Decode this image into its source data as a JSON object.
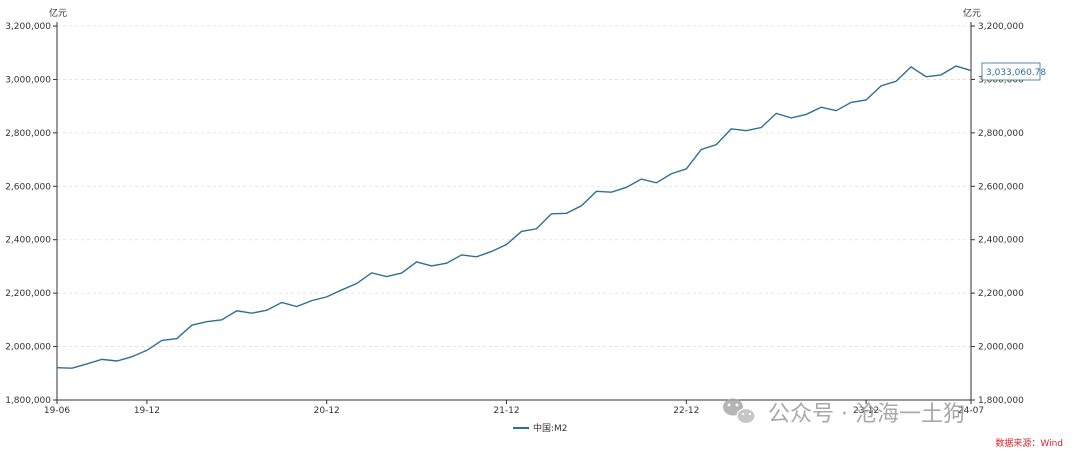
{
  "chart_data": {
    "type": "line",
    "unit_left": "亿元",
    "unit_right": "亿元",
    "ylim": [
      1800000,
      3200000
    ],
    "y_ticks": [
      1800000,
      2000000,
      2200000,
      2400000,
      2600000,
      2800000,
      3000000,
      3200000
    ],
    "y_tick_labels": [
      "1,800,000",
      "2,000,000",
      "2,200,000",
      "2,400,000",
      "2,600,000",
      "2,800,000",
      "3,000,000",
      "3,200,000"
    ],
    "x_tick_labels": [
      {
        "label": "19-06",
        "month": "2019-06"
      },
      {
        "label": "19-12",
        "month": "2019-12"
      },
      {
        "label": "20-12",
        "month": "2020-12"
      },
      {
        "label": "21-12",
        "month": "2021-12"
      },
      {
        "label": "22-12",
        "month": "2022-12"
      },
      {
        "label": "23-12",
        "month": "2023-12"
      },
      {
        "label": "24-07",
        "month": "2024-07"
      }
    ],
    "grid": "horizontal-dashed",
    "legend_position": "bottom-center",
    "series": [
      {
        "name": "中国:M2",
        "color": "#2e6f95",
        "x": [
          "2019-06",
          "2019-07",
          "2019-08",
          "2019-09",
          "2019-10",
          "2019-11",
          "2019-12",
          "2020-01",
          "2020-02",
          "2020-03",
          "2020-04",
          "2020-05",
          "2020-06",
          "2020-07",
          "2020-08",
          "2020-09",
          "2020-10",
          "2020-11",
          "2020-12",
          "2021-01",
          "2021-02",
          "2021-03",
          "2021-04",
          "2021-05",
          "2021-06",
          "2021-07",
          "2021-08",
          "2021-09",
          "2021-10",
          "2021-11",
          "2021-12",
          "2022-01",
          "2022-02",
          "2022-03",
          "2022-04",
          "2022-05",
          "2022-06",
          "2022-07",
          "2022-08",
          "2022-09",
          "2022-10",
          "2022-11",
          "2022-12",
          "2023-01",
          "2023-02",
          "2023-03",
          "2023-04",
          "2023-05",
          "2023-06",
          "2023-07",
          "2023-08",
          "2023-09",
          "2023-10",
          "2023-11",
          "2023-12",
          "2024-01",
          "2024-02",
          "2024-03",
          "2024-04",
          "2024-05",
          "2024-06",
          "2024-07"
        ],
        "values": [
          1921000,
          1919000,
          1935000,
          1952000,
          1946000,
          1962000,
          1986000,
          2023000,
          2030000,
          2080000,
          2093000,
          2100000,
          2134000,
          2125000,
          2136000,
          2165000,
          2150000,
          2172000,
          2186000,
          2212000,
          2236000,
          2276000,
          2262000,
          2275000,
          2317000,
          2302000,
          2312000,
          2343000,
          2336000,
          2356000,
          2382000,
          2431000,
          2441000,
          2497000,
          2499000,
          2527000,
          2581000,
          2578000,
          2596000,
          2627000,
          2613000,
          2647000,
          2665000,
          2738000,
          2756000,
          2815000,
          2808000,
          2820000,
          2873000,
          2856000,
          2869000,
          2896000,
          2883000,
          2914000,
          2923000,
          2976000,
          2993000,
          3047000,
          3010000,
          3017000,
          3050000,
          3033060.78
        ]
      }
    ],
    "tooltip": {
      "label": "3,033,060.78",
      "x": "2024-07"
    },
    "source": "数据来源：Wind"
  },
  "watermark": {
    "text": "公众号 · 沧海一土狗",
    "icon": "wechat-icon"
  }
}
